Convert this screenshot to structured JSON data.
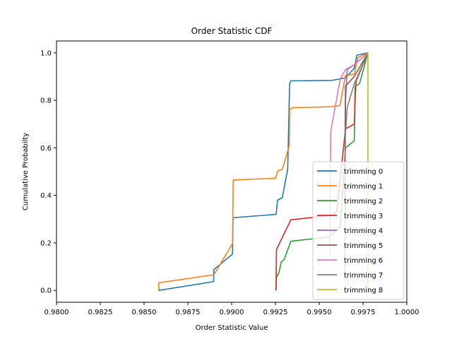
{
  "chart_data": {
    "type": "line",
    "title": "Order Statistic CDF",
    "xlabel": "Order Statistic Value",
    "ylabel": "Cumulative Probabilty",
    "xlim": [
      0.98,
      1.0
    ],
    "ylim": [
      -0.05,
      1.05
    ],
    "xticks": [
      "0.9800",
      "0.9825",
      "0.9850",
      "0.9875",
      "0.9900",
      "0.9925",
      "0.9950",
      "0.9975",
      "1.0000"
    ],
    "yticks": [
      "0.0",
      "0.2",
      "0.4",
      "0.6",
      "0.8",
      "1.0"
    ],
    "grid": false,
    "legend_position": "lower-right",
    "series": [
      {
        "name": "trimming 0",
        "color": "#1f77b4",
        "x": [
          0.98584,
          0.98584,
          0.98897,
          0.98899,
          0.99005,
          0.99008,
          0.99254,
          0.99262,
          0.99289,
          0.9932,
          0.99331,
          0.99338,
          0.99572,
          0.9961,
          0.9965,
          0.997,
          0.99715,
          0.99778
        ],
        "y": [
          0.015,
          0.0,
          0.037,
          0.088,
          0.153,
          0.306,
          0.32,
          0.38,
          0.39,
          0.51,
          0.87,
          0.882,
          0.884,
          0.889,
          0.895,
          0.935,
          0.99,
          1.0
        ]
      },
      {
        "name": "trimming 1",
        "color": "#ff7f0e",
        "x": [
          0.98584,
          0.98584,
          0.98899,
          0.99005,
          0.99009,
          0.99251,
          0.99262,
          0.99289,
          0.99294,
          0.99329,
          0.99331,
          0.99345,
          0.99562,
          0.99618,
          0.9965,
          0.997,
          0.9972,
          0.99778
        ],
        "y": [
          0.0,
          0.032,
          0.066,
          0.197,
          0.465,
          0.472,
          0.502,
          0.51,
          0.52,
          0.61,
          0.76,
          0.769,
          0.773,
          0.778,
          0.905,
          0.91,
          0.98,
          1.0
        ]
      },
      {
        "name": "trimming 2",
        "color": "#2ca02c",
        "x": [
          0.99254,
          0.99254,
          0.9927,
          0.99283,
          0.993,
          0.99338,
          0.9956,
          0.9962,
          0.9965,
          0.997,
          0.99705,
          0.9973,
          0.99778
        ],
        "y": [
          0.0,
          0.052,
          0.075,
          0.12,
          0.13,
          0.207,
          0.225,
          0.27,
          0.6,
          0.63,
          0.86,
          0.87,
          1.0
        ]
      },
      {
        "name": "trimming 3",
        "color": "#d62728",
        "x": [
          0.99254,
          0.99254,
          0.99256,
          0.99338,
          0.9956,
          0.996,
          0.9965,
          0.997,
          0.99705,
          0.9971,
          0.99778
        ],
        "y": [
          0.0,
          0.06,
          0.172,
          0.297,
          0.315,
          0.33,
          0.68,
          0.7,
          0.8,
          0.88,
          1.0
        ]
      },
      {
        "name": "trimming 4",
        "color": "#9467bd",
        "x": [
          0.99648,
          0.99648,
          0.9965,
          0.9966,
          0.997,
          0.99778
        ],
        "y": [
          0.04,
          0.5,
          0.8,
          0.93,
          0.95,
          1.0
        ]
      },
      {
        "name": "trimming 5",
        "color": "#8c564b",
        "x": [
          0.99648,
          0.99648,
          0.9965,
          0.997,
          0.99778
        ],
        "y": [
          0.05,
          0.7,
          0.86,
          0.9,
          1.0
        ]
      },
      {
        "name": "trimming 6",
        "color": "#e377c2",
        "x": [
          0.99562,
          0.99562,
          0.99566,
          0.9962,
          0.9965,
          0.997,
          0.99778
        ],
        "y": [
          0.15,
          0.34,
          0.67,
          0.89,
          0.93,
          0.95,
          1.0
        ]
      },
      {
        "name": "trimming 7",
        "color": "#7f7f7f",
        "x": [
          0.99648,
          0.99648,
          0.9966,
          0.997,
          0.99778
        ],
        "y": [
          0.05,
          0.64,
          0.77,
          0.87,
          1.0
        ]
      },
      {
        "name": "trimming 8",
        "color": "#bcbd22",
        "x": [
          0.99778,
          0.99778
        ],
        "y": [
          0.0,
          1.0
        ]
      }
    ]
  }
}
